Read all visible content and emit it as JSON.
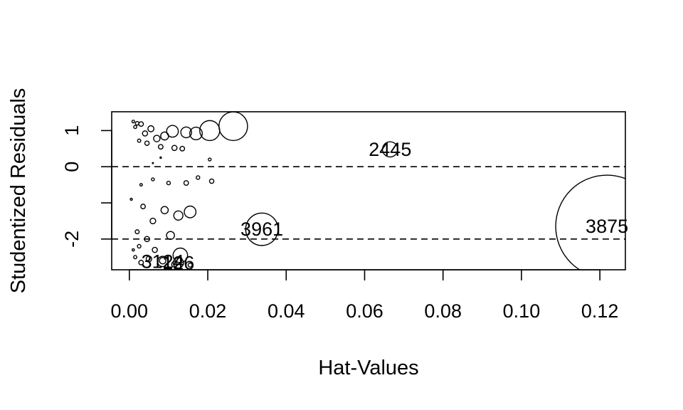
{
  "chart_data": {
    "type": "scatter",
    "title": "",
    "xlabel": "Hat-Values",
    "ylabel": "Studentized Residuals",
    "xlim": [
      -0.0045,
      0.1265
    ],
    "ylim": [
      -2.85,
      1.52
    ],
    "x_ticks": [
      0.0,
      0.02,
      0.04,
      0.06,
      0.08,
      0.1,
      0.12
    ],
    "x_tick_labels": [
      "0.00",
      "0.02",
      "0.04",
      "0.06",
      "0.08",
      "0.10",
      "0.12"
    ],
    "y_ticks": [
      -2,
      -1,
      0,
      1
    ],
    "y_tick_labels": [
      "-2",
      "",
      "0",
      "1"
    ],
    "reference_lines": [
      {
        "axis": "y",
        "value": 0,
        "style": "dashed"
      },
      {
        "axis": "y",
        "value": -2,
        "style": "dashed"
      }
    ],
    "grid": false,
    "point_style": "open circles; area proportional to Cook's distance",
    "labeled_points": [
      {
        "label": "3875",
        "x": 0.1218,
        "y": -1.65,
        "cook_d": 1.0
      },
      {
        "label": "3961",
        "x": 0.0338,
        "y": -1.73,
        "cook_d": 0.1
      },
      {
        "label": "2445",
        "x": 0.0665,
        "y": 0.48,
        "cook_d": 0.022
      },
      {
        "label": "3124",
        "x": 0.0085,
        "y": -2.62,
        "cook_d": 0.01
      },
      {
        "label": "126",
        "x": 0.0125,
        "y": -2.66,
        "cook_d": 0.01
      }
    ],
    "points": [
      {
        "x": 0.0265,
        "y": 1.12,
        "cook_d": 0.078
      },
      {
        "x": 0.0205,
        "y": 1.0,
        "cook_d": 0.038
      },
      {
        "x": 0.017,
        "y": 0.92,
        "cook_d": 0.015
      },
      {
        "x": 0.0145,
        "y": 0.95,
        "cook_d": 0.011
      },
      {
        "x": 0.011,
        "y": 0.98,
        "cook_d": 0.013
      },
      {
        "x": 0.009,
        "y": 0.85,
        "cook_d": 0.006
      },
      {
        "x": 0.007,
        "y": 0.78,
        "cook_d": 0.004
      },
      {
        "x": 0.0055,
        "y": 1.05,
        "cook_d": 0.0035
      },
      {
        "x": 0.004,
        "y": 0.92,
        "cook_d": 0.0025
      },
      {
        "x": 0.003,
        "y": 1.18,
        "cook_d": 0.002
      },
      {
        "x": 0.002,
        "y": 1.2,
        "cook_d": 0.0012
      },
      {
        "x": 0.0015,
        "y": 1.1,
        "cook_d": 0.0009
      },
      {
        "x": 0.001,
        "y": 1.25,
        "cook_d": 0.0007
      },
      {
        "x": 0.0025,
        "y": 0.72,
        "cook_d": 0.001
      },
      {
        "x": 0.0045,
        "y": 0.65,
        "cook_d": 0.0018
      },
      {
        "x": 0.008,
        "y": 0.55,
        "cook_d": 0.002
      },
      {
        "x": 0.0115,
        "y": 0.52,
        "cook_d": 0.0025
      },
      {
        "x": 0.0135,
        "y": 0.5,
        "cook_d": 0.002
      },
      {
        "x": 0.0205,
        "y": 0.2,
        "cook_d": 0.0008
      },
      {
        "x": 0.0175,
        "y": -0.3,
        "cook_d": 0.0012
      },
      {
        "x": 0.021,
        "y": -0.4,
        "cook_d": 0.0018
      },
      {
        "x": 0.0145,
        "y": -0.45,
        "cook_d": 0.002
      },
      {
        "x": 0.01,
        "y": -0.45,
        "cook_d": 0.0012
      },
      {
        "x": 0.006,
        "y": -0.35,
        "cook_d": 0.0008
      },
      {
        "x": 0.003,
        "y": -0.5,
        "cook_d": 0.0006
      },
      {
        "x": 0.0155,
        "y": -1.25,
        "cook_d": 0.013
      },
      {
        "x": 0.0125,
        "y": -1.35,
        "cook_d": 0.008
      },
      {
        "x": 0.009,
        "y": -1.2,
        "cook_d": 0.005
      },
      {
        "x": 0.0105,
        "y": -1.9,
        "cook_d": 0.006
      },
      {
        "x": 0.006,
        "y": -1.5,
        "cook_d": 0.003
      },
      {
        "x": 0.0035,
        "y": -1.1,
        "cook_d": 0.002
      },
      {
        "x": 0.002,
        "y": -1.8,
        "cook_d": 0.0015
      },
      {
        "x": 0.0045,
        "y": -2.0,
        "cook_d": 0.0025
      },
      {
        "x": 0.013,
        "y": -2.45,
        "cook_d": 0.02
      },
      {
        "x": 0.0085,
        "y": -2.6,
        "cook_d": 0.004
      },
      {
        "x": 0.005,
        "y": -2.55,
        "cook_d": 0.003
      },
      {
        "x": 0.003,
        "y": -2.65,
        "cook_d": 0.002
      },
      {
        "x": 0.0015,
        "y": -2.5,
        "cook_d": 0.001
      },
      {
        "x": 0.0025,
        "y": -2.2,
        "cook_d": 0.0012
      },
      {
        "x": 0.0065,
        "y": -2.3,
        "cook_d": 0.0025
      },
      {
        "x": 0.0115,
        "y": -2.7,
        "cook_d": 0.003
      },
      {
        "x": 0.0155,
        "y": -2.72,
        "cook_d": 0.0015
      },
      {
        "x": 0.001,
        "y": -2.3,
        "cook_d": 0.0005
      },
      {
        "x": 0.0005,
        "y": -0.9,
        "cook_d": 0.0004
      },
      {
        "x": 0.008,
        "y": 0.25,
        "cook_d": 0.0002
      },
      {
        "x": 0.006,
        "y": 0.1,
        "cook_d": 0.0001
      }
    ]
  }
}
